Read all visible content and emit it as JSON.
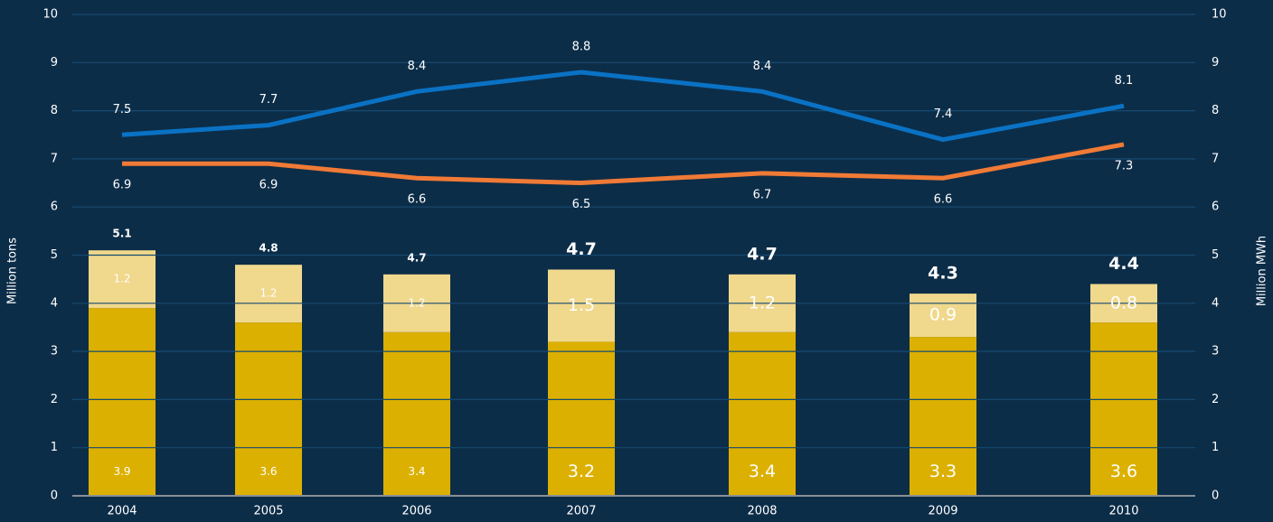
{
  "chart_data": {
    "type": "bar",
    "categories": [
      "2004",
      "2005",
      "2006",
      "2007",
      "2008",
      "2009",
      "2010"
    ],
    "series": [
      {
        "type": "bar",
        "color": "#dcb000",
        "values": [
          3.9,
          3.6,
          3.4,
          3.2,
          3.4,
          3.3,
          3.6
        ]
      },
      {
        "type": "bar",
        "color": "#f0d88c",
        "values": [
          1.2,
          1.2,
          1.2,
          1.5,
          1.2,
          0.9,
          0.8
        ]
      },
      {
        "type": "line",
        "axis": "y2",
        "color": "#0a72c4",
        "values": [
          7.5,
          7.7,
          8.4,
          8.8,
          8.4,
          7.4,
          8.1
        ]
      },
      {
        "type": "line",
        "axis": "y2",
        "color": "#f07a36",
        "values": [
          6.9,
          6.9,
          6.6,
          6.5,
          6.7,
          6.6,
          7.3
        ]
      }
    ],
    "totals": [
      5.1,
      4.8,
      4.7,
      4.7,
      4.7,
      4.3,
      4.4
    ],
    "ylabel": "Million tons",
    "y2label": "Million MWh",
    "ylim": [
      0,
      10
    ],
    "yticks": [
      0,
      1,
      2,
      3,
      4,
      5,
      6,
      7,
      8,
      9,
      10
    ],
    "y2lim": [
      0,
      10
    ],
    "y2ticks": [
      0,
      1,
      2,
      3,
      4,
      5,
      6,
      7,
      8,
      9,
      10
    ],
    "grid": true
  }
}
